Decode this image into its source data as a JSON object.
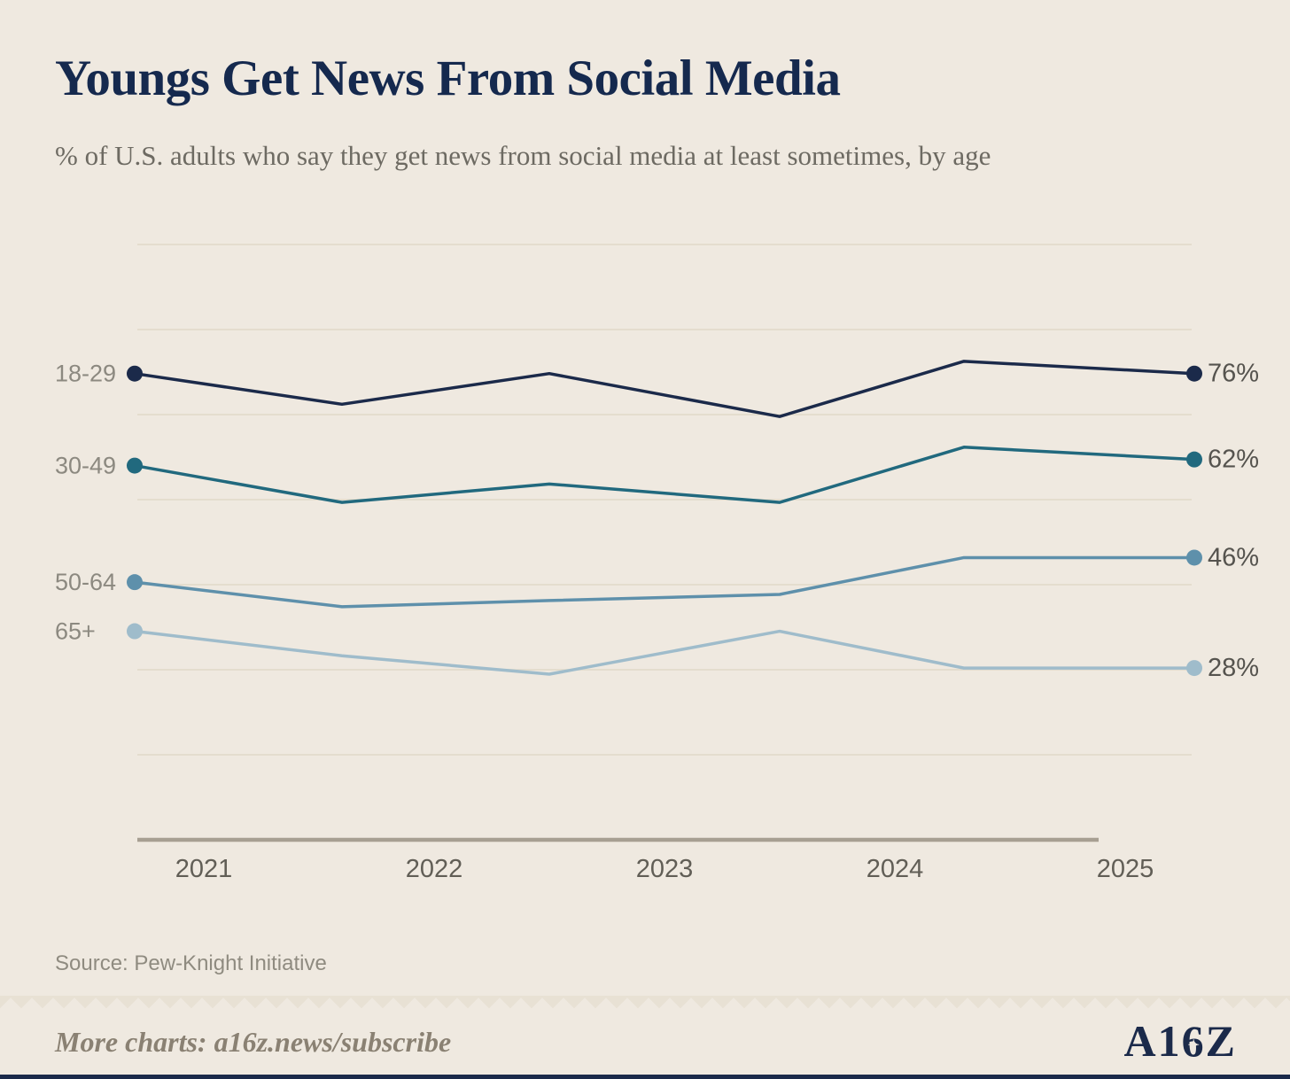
{
  "title": "Youngs Get News From Social Media",
  "subtitle": "% of U.S. adults who say they get news from social media at least sometimes, by age",
  "source": "Source: Pew-Knight Initiative",
  "footer": {
    "more_charts": "More charts: a16z.news/subscribe",
    "logo": {
      "a1": "A1",
      "six": "6",
      "z": "Z"
    }
  },
  "icons": {
    "compass_star": "✦"
  },
  "colors": {
    "background": "#efe9e0",
    "title": "#15294e",
    "grid": "#e4ddce",
    "axis": "#a79f92",
    "tick_label": "#615e56",
    "series_label": "#8c8980",
    "value_label": "#55534e"
  },
  "chart_data": {
    "type": "line",
    "title": "Youngs Get News From Social Media",
    "subtitle": "% of U.S. adults who say they get news from social media at least sometimes, by age",
    "x": [
      2020.7,
      2021.6,
      2022.5,
      2023.5,
      2024.3,
      2025.3
    ],
    "x_ticks": [
      2021,
      2022,
      2023,
      2024,
      2025
    ],
    "ylim": [
      0,
      100
    ],
    "grid": true,
    "legend_position": "left-inline",
    "series": [
      {
        "name": "18-29",
        "color": "#1b2a4a",
        "values": [
          76,
          71,
          76,
          69,
          78,
          76
        ],
        "end_label": "76%"
      },
      {
        "name": "30-49",
        "color": "#21697e",
        "values": [
          61,
          55,
          58,
          55,
          64,
          62
        ],
        "end_label": "62%"
      },
      {
        "name": "50-64",
        "color": "#5e90ab",
        "values": [
          42,
          38,
          39,
          40,
          46,
          46
        ],
        "end_label": "46%"
      },
      {
        "name": "65+",
        "color": "#9fbccb",
        "values": [
          34,
          30,
          27,
          34,
          28,
          28
        ],
        "end_label": "28%"
      }
    ]
  }
}
